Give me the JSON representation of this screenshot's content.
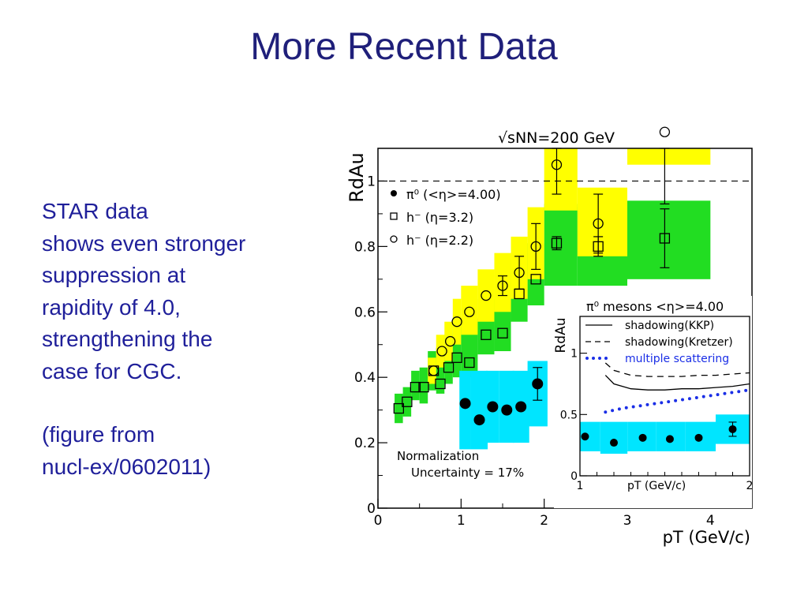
{
  "slide": {
    "title": "More Recent Data",
    "paragraph1": [
      "STAR data",
      "shows even stronger",
      "suppression at",
      "rapidity of 4.0,",
      "strengthening the",
      "case for CGC."
    ],
    "paragraph2": [
      "(figure from",
      "nucl-ex/0602011)"
    ],
    "text_color": "#1f1f9a",
    "title_color": "#1f1f7a"
  },
  "chart_data": [
    {
      "type": "scatter",
      "title": "√sNN=200 GeV",
      "ylabel": "RdAu",
      "xlabel": "pT (GeV/c)",
      "xlim": [
        0,
        4.5
      ],
      "ylim": [
        0,
        1.1
      ],
      "xticks": [
        "0",
        "1",
        "2",
        "3",
        "4"
      ],
      "yticks": [
        "0",
        "0.2",
        "0.4",
        "0.6",
        "0.8",
        "1"
      ],
      "reference_line": 1.0,
      "legend": [
        "π⁰ (<η>=4.00)",
        "h⁻ (η=3.2)",
        "h⁻ (η=2.2)"
      ],
      "annotation": [
        "Normalization",
        "Uncertainty = 17%"
      ],
      "series": [
        {
          "name": "π⁰ (<η>=4.00)",
          "marker": "filled-circle",
          "band_color": "#00e5ff",
          "x": [
            1.05,
            1.22,
            1.38,
            1.55,
            1.72,
            1.92
          ],
          "y": [
            0.32,
            0.27,
            0.31,
            0.3,
            0.31,
            0.38
          ],
          "err": [
            0,
            0,
            0,
            0,
            0,
            0.05
          ],
          "band": [
            [
              0.98,
              0.18,
              0.42
            ],
            [
              1.12,
              0.18,
              0.42
            ],
            [
              1.3,
              0.2,
              0.42
            ],
            [
              1.46,
              0.2,
              0.42
            ],
            [
              1.62,
              0.2,
              0.42
            ],
            [
              1.8,
              0.25,
              0.45
            ]
          ]
        },
        {
          "name": "h⁻ (η=3.2)",
          "marker": "open-square",
          "band_color": "#22dd22",
          "x": [
            0.25,
            0.35,
            0.45,
            0.55,
            0.67,
            0.75,
            0.85,
            0.95,
            1.1,
            1.3,
            1.5,
            1.7,
            1.9,
            2.15,
            2.65,
            3.45
          ],
          "y": [
            0.305,
            0.325,
            0.37,
            0.37,
            0.42,
            0.38,
            0.43,
            0.46,
            0.445,
            0.53,
            0.535,
            0.655,
            0.7,
            0.81,
            0.8,
            0.825
          ],
          "err": [
            0,
            0,
            0,
            0,
            0,
            0,
            0,
            0,
            0,
            0,
            0,
            0,
            0,
            0.02,
            0.03,
            0.09
          ],
          "band": [
            [
              0.2,
              0.3,
              0.26,
              0.35
            ],
            [
              0.3,
              0.4,
              0.28,
              0.37
            ],
            [
              0.4,
              0.5,
              0.33,
              0.42
            ],
            [
              0.5,
              0.6,
              0.32,
              0.43
            ],
            [
              0.6,
              0.7,
              0.36,
              0.48
            ],
            [
              0.7,
              0.8,
              0.35,
              0.49
            ],
            [
              0.8,
              0.9,
              0.38,
              0.53
            ],
            [
              0.9,
              1.0,
              0.4,
              0.56
            ],
            [
              1.0,
              1.2,
              0.4,
              0.58
            ],
            [
              1.2,
              1.4,
              0.47,
              0.64
            ],
            [
              1.4,
              1.6,
              0.48,
              0.68
            ],
            [
              1.6,
              1.8,
              0.57,
              0.76
            ],
            [
              1.8,
              2.0,
              0.62,
              0.81
            ],
            [
              2.0,
              2.4,
              0.68,
              0.93
            ],
            [
              2.4,
              3.0,
              0.68,
              0.92
            ],
            [
              3.0,
              4.0,
              0.7,
              0.94
            ]
          ]
        },
        {
          "name": "h⁻ (η=2.2)",
          "marker": "open-circle",
          "band_color": "#ffff00",
          "x": [
            0.67,
            0.77,
            0.87,
            0.95,
            1.1,
            1.3,
            1.5,
            1.7,
            1.9,
            2.15,
            2.65,
            3.45
          ],
          "y": [
            0.42,
            0.48,
            0.51,
            0.57,
            0.6,
            0.65,
            0.68,
            0.72,
            0.8,
            1.05,
            0.87,
            1.15
          ],
          "err": [
            0,
            0,
            0,
            0,
            0,
            0,
            0.03,
            0.05,
            0.07,
            0.09,
            0.09,
            0.22
          ],
          "band": [
            [
              0.6,
              0.7,
              0.38,
              0.46
            ],
            [
              0.7,
              0.8,
              0.43,
              0.53
            ],
            [
              0.8,
              0.9,
              0.45,
              0.57
            ],
            [
              0.9,
              1.0,
              0.5,
              0.64
            ],
            [
              1.0,
              1.2,
              0.53,
              0.68
            ],
            [
              1.2,
              1.4,
              0.57,
              0.73
            ],
            [
              1.4,
              1.6,
              0.6,
              0.78
            ],
            [
              1.6,
              1.8,
              0.64,
              0.83
            ],
            [
              1.8,
              2.0,
              0.7,
              0.92
            ],
            [
              2.0,
              2.4,
              0.91,
              1.1
            ],
            [
              2.4,
              3.0,
              0.77,
              0.98
            ],
            [
              3.0,
              4.0,
              1.05,
              1.1
            ]
          ]
        }
      ]
    },
    {
      "type": "line",
      "title": "π⁰ mesons <η>=4.00",
      "ylabel": "RdAu",
      "xlabel": "pT (GeV/c)",
      "xlim": [
        1,
        2
      ],
      "ylim": [
        0,
        1.3
      ],
      "xticks": [
        "1",
        "2"
      ],
      "yticks": [
        "0",
        "0.5",
        "1"
      ],
      "legend": [
        "shadowing(KKP)",
        "shadowing(Kretzer)",
        "multiple scattering"
      ],
      "series": [
        {
          "name": "shadowing(KKP)",
          "style": "solid",
          "x": [
            1.15,
            1.2,
            1.3,
            1.4,
            1.5,
            1.6,
            1.7,
            1.8,
            1.9,
            2.0
          ],
          "y": [
            0.82,
            0.75,
            0.71,
            0.7,
            0.7,
            0.71,
            0.71,
            0.72,
            0.73,
            0.75
          ]
        },
        {
          "name": "shadowing(Kretzer)",
          "style": "dashed",
          "x": [
            1.15,
            1.2,
            1.3,
            1.4,
            1.5,
            1.6,
            1.7,
            1.8,
            1.9,
            2.0
          ],
          "y": [
            0.92,
            0.86,
            0.82,
            0.81,
            0.81,
            0.81,
            0.82,
            0.82,
            0.83,
            0.84
          ]
        },
        {
          "name": "multiple scattering",
          "style": "dotted",
          "color": "#1a2ee6",
          "x": [
            1.15,
            1.25,
            1.35,
            1.45,
            1.55,
            1.65,
            1.75,
            1.85,
            1.95,
            2.0
          ],
          "y": [
            0.52,
            0.55,
            0.57,
            0.59,
            0.61,
            0.63,
            0.65,
            0.67,
            0.69,
            0.7
          ]
        },
        {
          "name": "π⁰ data",
          "marker": "filled-circle",
          "band_color": "#00e5ff",
          "x": [
            1.03,
            1.2,
            1.37,
            1.53,
            1.7,
            1.9
          ],
          "y": [
            0.32,
            0.27,
            0.31,
            0.3,
            0.31,
            0.38
          ],
          "band": [
            [
              1.0,
              1.12,
              0.2,
              0.44
            ],
            [
              1.12,
              1.28,
              0.18,
              0.44
            ],
            [
              1.28,
              1.45,
              0.2,
              0.44
            ],
            [
              1.45,
              1.62,
              0.2,
              0.44
            ],
            [
              1.62,
              1.8,
              0.2,
              0.44
            ],
            [
              1.8,
              2.0,
              0.26,
              0.5
            ]
          ]
        }
      ]
    }
  ]
}
